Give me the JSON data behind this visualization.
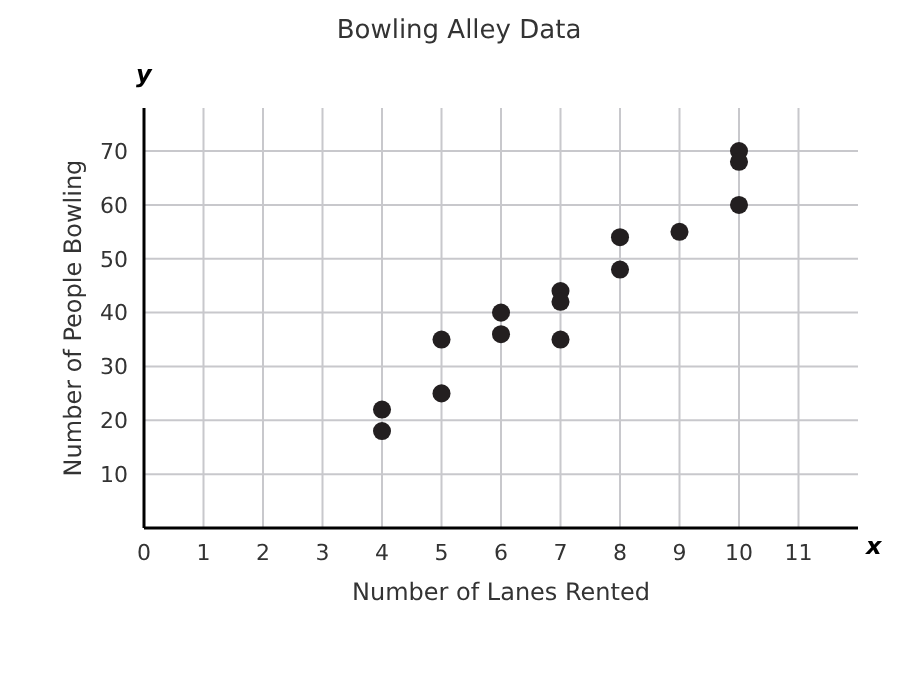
{
  "chart_data": {
    "type": "scatter",
    "title": "Bowling Alley Data",
    "xlabel": "Number of Lanes Rented",
    "ylabel": "Number of People Bowling",
    "x": [
      4,
      4,
      5,
      5,
      6,
      6,
      7,
      7,
      7,
      8,
      8,
      9,
      10,
      10,
      10
    ],
    "values": [
      22,
      18,
      35,
      25,
      40,
      36,
      44,
      42,
      35,
      54,
      48,
      55,
      70,
      68,
      60
    ],
    "color": "#231f20",
    "marker": "circle",
    "grid": true,
    "xlim": [
      0,
      12
    ],
    "xticks": [
      0,
      1,
      2,
      3,
      4,
      5,
      6,
      7,
      8,
      9,
      10,
      11
    ],
    "ylim": [
      0,
      78
    ],
    "yticks": [
      {
        "value": 0,
        "label": null
      },
      10,
      20,
      30,
      40,
      50,
      60,
      70
    ],
    "annotations": [
      "x",
      "y"
    ]
  }
}
